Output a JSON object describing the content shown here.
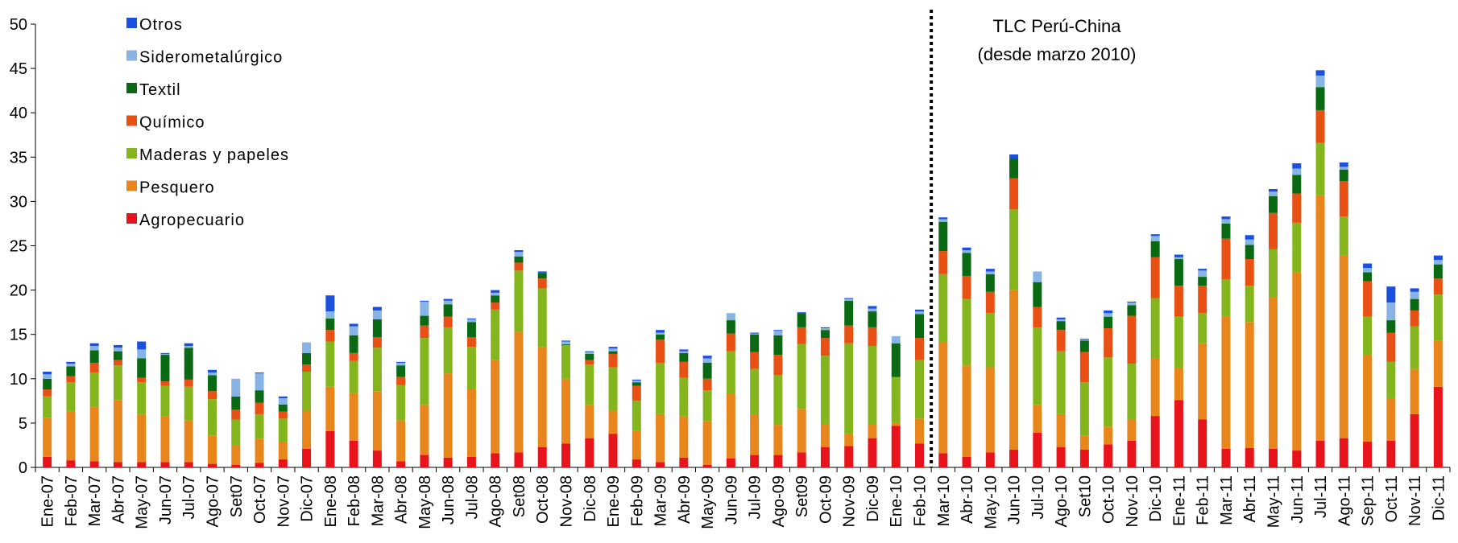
{
  "chart_data": {
    "type": "bar",
    "stacked": true,
    "ylim": [
      0,
      50
    ],
    "yticks": [
      0,
      5,
      10,
      15,
      20,
      25,
      30,
      35,
      40,
      45,
      50
    ],
    "grid": false,
    "legend_position": "top-left",
    "categories": [
      "Ene-07",
      "Feb-07",
      "Mar-07",
      "Abr-07",
      "May-07",
      "Jun-07",
      "Jul-07",
      "Ago-07",
      "Set07",
      "Oct-07",
      "Nov-07",
      "Dic-07",
      "Ene-08",
      "Feb-08",
      "Mar-08",
      "Abr-08",
      "May-08",
      "Jun-08",
      "Jul-08",
      "Ago-08",
      "Set08",
      "Oct-08",
      "Nov-08",
      "Dic-08",
      "Ene-09",
      "Feb-09",
      "Mar-09",
      "Abr-09",
      "May-09",
      "Jun-09",
      "Jul-09",
      "Ago-09",
      "Set09",
      "Oct-09",
      "Nov-09",
      "Dic-09",
      "Ene-10",
      "Feb-10",
      "Mar-10",
      "Abr-10",
      "May-10",
      "Jun-10",
      "Jul-10",
      "Ago-10",
      "Set10",
      "Oct-10",
      "Nov-10",
      "Dic-10",
      "Ene-11",
      "Feb-11",
      "Mar-11",
      "Abr-11",
      "May-11",
      "Jun-11",
      "Jul-11",
      "Ago-11",
      "Sep-11",
      "Oct-11",
      "Nov-11",
      "Dic-11"
    ],
    "series": [
      {
        "name": "Agropecuario",
        "color": "#e8141c",
        "values": [
          1.2,
          0.8,
          0.7,
          0.6,
          0.6,
          0.6,
          0.6,
          0.4,
          0.3,
          0.5,
          0.9,
          2.1,
          4.1,
          3.0,
          1.9,
          0.7,
          1.4,
          1.1,
          1.2,
          1.6,
          1.7,
          2.3,
          2.7,
          3.3,
          3.8,
          0.9,
          0.6,
          1.1,
          0.3,
          1.0,
          1.4,
          1.4,
          1.7,
          2.3,
          2.4,
          3.3,
          4.7,
          2.7,
          1.6,
          1.2,
          1.7,
          2.0,
          3.9,
          2.3,
          2.0,
          2.6,
          3.0,
          5.8,
          7.6,
          5.4,
          2.1,
          2.2,
          2.1,
          1.9,
          3.0,
          3.3,
          2.9,
          3.0,
          6.0,
          9.1
        ]
      },
      {
        "name": "Pesquero",
        "color": "#e8861c",
        "values": [
          4.4,
          5.5,
          6.1,
          7.0,
          5.4,
          5.2,
          4.7,
          3.2,
          2.2,
          2.7,
          2.0,
          4.3,
          5.0,
          5.4,
          6.7,
          4.6,
          5.6,
          9.5,
          7.6,
          10.5,
          13.6,
          11.3,
          7.3,
          3.7,
          2.6,
          3.2,
          5.4,
          4.7,
          4.9,
          7.3,
          4.6,
          3.4,
          4.9,
          2.6,
          1.4,
          1.6,
          0.3,
          2.8,
          12.5,
          10.3,
          9.6,
          18.0,
          3.1,
          3.7,
          1.6,
          2.0,
          2.4,
          6.5,
          3.6,
          8.6,
          14.9,
          14.2,
          17.1,
          20.1,
          27.7,
          20.6,
          9.8,
          4.8,
          5.1,
          5.2
        ]
      },
      {
        "name": "Maderas y papeles",
        "color": "#85b51c",
        "values": [
          2.4,
          3.3,
          3.9,
          3.9,
          3.6,
          3.4,
          3.8,
          4.1,
          2.9,
          2.8,
          2.6,
          4.4,
          5.1,
          3.6,
          4.9,
          4.0,
          7.6,
          5.2,
          4.8,
          5.7,
          6.9,
          6.6,
          3.8,
          4.6,
          4.9,
          3.4,
          5.8,
          4.3,
          3.5,
          4.8,
          5.1,
          5.6,
          7.3,
          7.7,
          10.2,
          8.8,
          5.2,
          6.6,
          7.7,
          7.5,
          6.1,
          9.1,
          8.8,
          7.1,
          6.0,
          7.8,
          6.3,
          6.8,
          5.8,
          3.4,
          4.2,
          4.1,
          5.4,
          5.6,
          5.9,
          4.4,
          4.3,
          4.1,
          4.8,
          5.2
        ]
      },
      {
        "name": "Químico",
        "color": "#e85014",
        "values": [
          0.8,
          0.7,
          1.1,
          0.6,
          0.5,
          0.5,
          0.8,
          0.9,
          1.1,
          1.3,
          0.8,
          0.8,
          1.3,
          0.9,
          1.2,
          0.9,
          1.4,
          1.2,
          1.1,
          0.8,
          0.9,
          1.1,
          0.0,
          0.5,
          1.5,
          1.7,
          2.6,
          1.8,
          1.3,
          2.0,
          1.9,
          2.3,
          1.9,
          2.0,
          2.0,
          2.1,
          0.0,
          2.5,
          2.6,
          2.6,
          2.4,
          3.5,
          2.3,
          2.4,
          3.4,
          3.3,
          5.4,
          4.6,
          3.5,
          3.1,
          4.6,
          3.0,
          4.1,
          3.3,
          3.7,
          4.0,
          4.0,
          3.3,
          1.8,
          1.8
        ]
      },
      {
        "name": "Textil",
        "color": "#0a6a14",
        "values": [
          1.2,
          1.1,
          1.4,
          1.0,
          2.2,
          3.0,
          3.6,
          1.8,
          1.5,
          1.4,
          0.8,
          1.3,
          1.3,
          2.0,
          2.0,
          1.3,
          1.1,
          1.4,
          1.7,
          0.8,
          0.7,
          0.6,
          0.1,
          0.7,
          0.3,
          0.4,
          0.6,
          1.0,
          1.8,
          1.5,
          2.0,
          2.2,
          1.6,
          0.9,
          2.8,
          1.8,
          3.8,
          2.7,
          3.3,
          2.6,
          2.0,
          2.2,
          2.8,
          1.0,
          1.3,
          1.3,
          1.2,
          1.8,
          3.0,
          1.0,
          1.7,
          1.6,
          1.9,
          2.1,
          2.6,
          1.3,
          1.0,
          1.4,
          1.3,
          1.6
        ]
      },
      {
        "name": "Siderometalúrgico",
        "color": "#87b4e4",
        "values": [
          0.5,
          0.3,
          0.5,
          0.4,
          1.0,
          0.1,
          0.2,
          0.3,
          2.0,
          1.9,
          0.7,
          1.2,
          0.8,
          1.0,
          1.0,
          0.3,
          1.6,
          0.4,
          0.3,
          0.3,
          0.5,
          0.0,
          0.3,
          0.2,
          0.3,
          0.2,
          0.2,
          0.2,
          0.5,
          0.8,
          0.1,
          0.5,
          0.0,
          0.2,
          0.2,
          0.3,
          0.8,
          0.3,
          0.3,
          0.3,
          0.3,
          0.0,
          1.2,
          0.2,
          0.1,
          0.4,
          0.3,
          0.6,
          0.2,
          0.7,
          0.5,
          0.6,
          0.5,
          0.7,
          1.3,
          0.3,
          0.5,
          2.0,
          0.8,
          0.5
        ]
      },
      {
        "name": "Otros",
        "color": "#1a4fe0",
        "values": [
          0.3,
          0.2,
          0.3,
          0.3,
          0.9,
          0.1,
          0.3,
          0.3,
          0.0,
          0.1,
          0.2,
          0.0,
          1.8,
          0.3,
          0.4,
          0.1,
          0.1,
          0.2,
          0.1,
          0.3,
          0.2,
          0.2,
          0.1,
          0.1,
          0.2,
          0.1,
          0.3,
          0.2,
          0.3,
          0.0,
          0.1,
          0.1,
          0.1,
          0.1,
          0.1,
          0.3,
          0.0,
          0.2,
          0.2,
          0.3,
          0.3,
          0.5,
          0.0,
          0.2,
          0.1,
          0.3,
          0.1,
          0.2,
          0.3,
          0.2,
          0.3,
          0.5,
          0.3,
          0.6,
          0.6,
          0.5,
          0.5,
          1.8,
          0.4,
          0.5
        ]
      }
    ],
    "legend_order": [
      "Otros",
      "Siderometalúrgico",
      "Textil",
      "Químico",
      "Maderas y papeles",
      "Pesquero",
      "Agropecuario"
    ],
    "annotation": {
      "line1": "TLC Perú-China",
      "line2": "(desde marzo 2010)",
      "divider_between": [
        "Feb-10",
        "Mar-10"
      ]
    }
  }
}
